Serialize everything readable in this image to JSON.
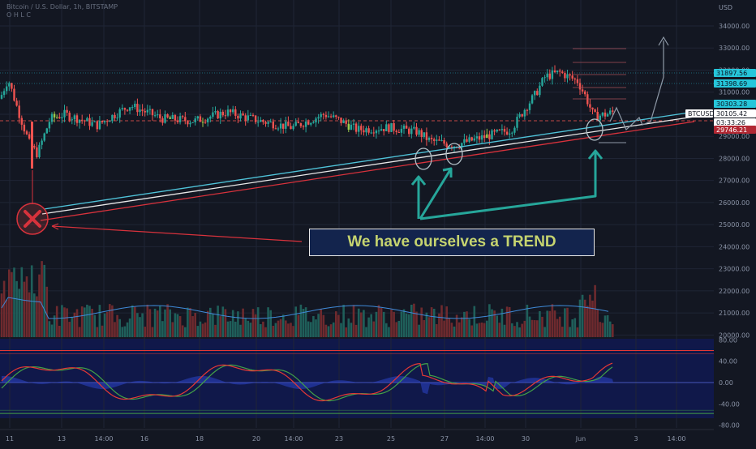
{
  "header": {
    "symbol_line": "Bitcoin / U.S. Dollar, 1h, BITSTAMP",
    "sub_line": "O  H  L  C"
  },
  "annotation": {
    "text": "We have ourselves a TREND"
  },
  "price_axis": {
    "currency": "USD",
    "ticks": [
      "34000.00",
      "33000.00",
      "32000.00",
      "31000.00",
      "30000.00",
      "29000.00",
      "28000.00",
      "27000.00",
      "26000.00",
      "25000.00",
      "24000.00",
      "23000.00",
      "22000.00",
      "21000.00",
      "20000.00"
    ],
    "labels": [
      {
        "text": "31897.56",
        "bg": "#26c6da",
        "fg": "#0b1220"
      },
      {
        "text": "31398.69",
        "bg": "#26c6da",
        "fg": "#0b1220"
      },
      {
        "text": "30303.28",
        "bg": "#26c6da",
        "fg": "#0b1220"
      },
      {
        "text": "BTCUSD",
        "bg": "#ffffff",
        "fg": "#131722"
      },
      {
        "text": "30105.42",
        "bg": "#ffffff",
        "fg": "#131722"
      },
      {
        "text": "03:33:26",
        "bg": "#ffffff",
        "fg": "#131722"
      },
      {
        "text": "29746.21",
        "bg": "#b22833",
        "fg": "#ffffff"
      }
    ]
  },
  "oscillator_axis": {
    "ticks": [
      "80.00",
      "40.00",
      "0.00",
      "-40.00",
      "-80.00"
    ]
  },
  "time_axis": {
    "ticks": [
      "11",
      "13",
      "14:00",
      "16",
      "18",
      "20",
      "14:00",
      "23",
      "25",
      "27",
      "14:00",
      "30",
      "Jun",
      "3",
      "14:00"
    ]
  },
  "colors": {
    "background": "#131722",
    "up": "#26a69a",
    "down": "#ef5350",
    "trend_red": "#d8323c",
    "trend_cyan": "#4fc3d9",
    "annotation_arrow": "#26a69a",
    "osc_red": "#e53935",
    "osc_green": "#43a047",
    "osc_band": "#0f1a6b",
    "lime_candle": "#9ccc4a"
  },
  "chart_data": {
    "type": "candlestick",
    "price_range": [
      20000,
      34500
    ],
    "oscillator_range": [
      -90,
      90
    ],
    "notable_levels": [
      31897.56,
      31398.69,
      30303.28,
      30105.42,
      29746.21
    ],
    "trendlines": [
      "support-red",
      "support-white",
      "support-cyan"
    ],
    "highlights": [
      "rejection-x-marker",
      "touch-circle-1",
      "touch-circle-2",
      "touch-circle-3"
    ],
    "projection": "higher-highs path toward ~34000"
  }
}
